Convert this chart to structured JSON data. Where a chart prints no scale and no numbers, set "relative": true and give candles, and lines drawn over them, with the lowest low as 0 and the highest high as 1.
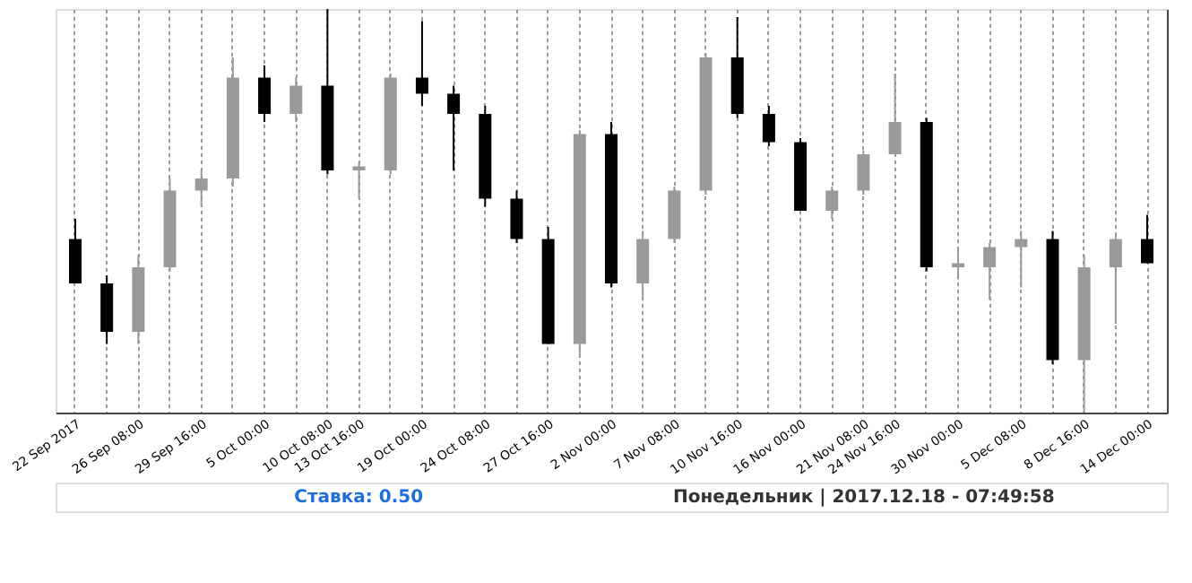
{
  "chart_data": {
    "type": "candlestick",
    "relative": true,
    "grid": "x",
    "categories": [
      "22 Sep 2017",
      null,
      "26 Sep 08:00",
      null,
      "29 Sep 16:00",
      null,
      "5 Oct 00:00",
      null,
      "10 Oct 08:00",
      "13 Oct 16:00",
      null,
      "19 Oct 00:00",
      null,
      "24 Oct 08:00",
      null,
      "27 Oct 16:00",
      null,
      "2 Nov 00:00",
      null,
      "7 Nov 08:00",
      null,
      "10 Nov 16:00",
      null,
      "16 Nov 00:00",
      null,
      "21 Nov 08:00",
      "24 Nov 16:00",
      null,
      "30 Nov 00:00",
      null,
      "5 Dec 08:00",
      null,
      "8 Dec 16:00",
      null,
      "14 Dec 00:00"
    ],
    "ohlc": [
      [
        0.43,
        0.48,
        0.32,
        0.32
      ],
      [
        0.32,
        0.34,
        0.17,
        0.2
      ],
      [
        0.2,
        0.39,
        0.17,
        0.36
      ],
      [
        0.36,
        0.58,
        0.35,
        0.55
      ],
      [
        0.55,
        0.6,
        0.51,
        0.58
      ],
      [
        0.58,
        0.88,
        0.56,
        0.83
      ],
      [
        0.83,
        0.86,
        0.72,
        0.74
      ],
      [
        0.74,
        0.83,
        0.72,
        0.81
      ],
      [
        0.81,
        1,
        0.59,
        0.6
      ],
      [
        0.6,
        0.62,
        0.53,
        0.61
      ],
      [
        0.6,
        0.84,
        0.59,
        0.83
      ],
      [
        0.83,
        0.97,
        0.76,
        0.79
      ],
      [
        0.79,
        0.81,
        0.6,
        0.74
      ],
      [
        0.74,
        0.76,
        0.51,
        0.53
      ],
      [
        0.53,
        0.55,
        0.42,
        0.43
      ],
      [
        0.43,
        0.46,
        0.17,
        0.17
      ],
      [
        0.17,
        0.7,
        0.14,
        0.69
      ],
      [
        0.69,
        0.72,
        0.31,
        0.32
      ],
      [
        0.32,
        0.45,
        0.28,
        0.43
      ],
      [
        0.43,
        0.56,
        0.42,
        0.55
      ],
      [
        0.55,
        0.89,
        0.54,
        0.88
      ],
      [
        0.88,
        0.98,
        0.73,
        0.74
      ],
      [
        0.74,
        0.76,
        0.66,
        0.67
      ],
      [
        0.67,
        0.68,
        0.5,
        0.5
      ],
      [
        0.5,
        0.56,
        0.48,
        0.55
      ],
      [
        0.55,
        0.65,
        0.54,
        0.64
      ],
      [
        0.64,
        0.84,
        0.64,
        0.72
      ],
      [
        0.72,
        0.73,
        0.35,
        0.36
      ],
      [
        0.36,
        0.41,
        0.33,
        0.37
      ],
      [
        0.36,
        0.42,
        0.28,
        0.41
      ],
      [
        0.41,
        0.45,
        0.31,
        0.43
      ],
      [
        0.43,
        0.45,
        0.12,
        0.13
      ],
      [
        0.13,
        0.39,
        0,
        0.36
      ],
      [
        0.36,
        0.44,
        0.22,
        0.43
      ],
      [
        0.43,
        0.49,
        0.37,
        0.37
      ]
    ],
    "annotations": [
      "Ставка: 0.50",
      "Понедельник | 2017.12.18 - 07:49:58"
    ]
  }
}
